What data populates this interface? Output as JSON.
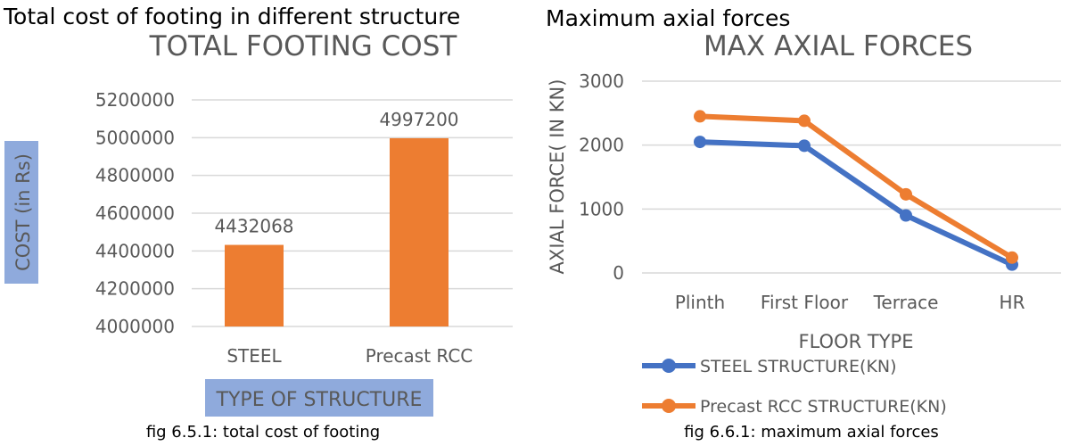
{
  "left": {
    "heading": "Total cost of footing in different structure",
    "caption": "fig 6.5.1: total cost of footing"
  },
  "right": {
    "heading": "Maximum axial forces",
    "caption": "fig 6.6.1: maximum axial forces"
  },
  "chart_data": [
    {
      "type": "bar",
      "title": "TOTAL FOOTING COST",
      "xlabel": "TYPE OF STRUCTURE",
      "ylabel": "COST (in Rs)",
      "categories": [
        "STEEL",
        "Precast RCC"
      ],
      "values": [
        4432068,
        4997200
      ],
      "data_labels": [
        "4432068",
        "4997200"
      ],
      "ylim": [
        4000000,
        5200000
      ],
      "yticks": [
        "4000000",
        "4200000",
        "4400000",
        "4600000",
        "4800000",
        "5000000",
        "5200000"
      ],
      "grid": true,
      "colors": {
        "bar": "#ED7D31",
        "axis_title_bg": "#8FAADC"
      }
    },
    {
      "type": "line",
      "title": "MAX AXIAL FORCES",
      "xlabel": "FLOOR TYPE",
      "ylabel": "AXIAL FORCE( IN KN)",
      "categories": [
        "Plinth",
        "First Floor",
        "Terrace",
        "HR"
      ],
      "series": [
        {
          "name": "STEEL STRUCTURE(KN)",
          "values": [
            2050,
            1990,
            900,
            130
          ],
          "color": "#4472C4"
        },
        {
          "name": "Precast RCC STRUCTURE(KN)",
          "values": [
            2450,
            2380,
            1230,
            240
          ],
          "color": "#ED7D31"
        }
      ],
      "ylim": [
        0,
        3000
      ],
      "yticks": [
        "0",
        "1000",
        "2000",
        "3000"
      ],
      "grid": true,
      "legend": "bottom"
    }
  ]
}
